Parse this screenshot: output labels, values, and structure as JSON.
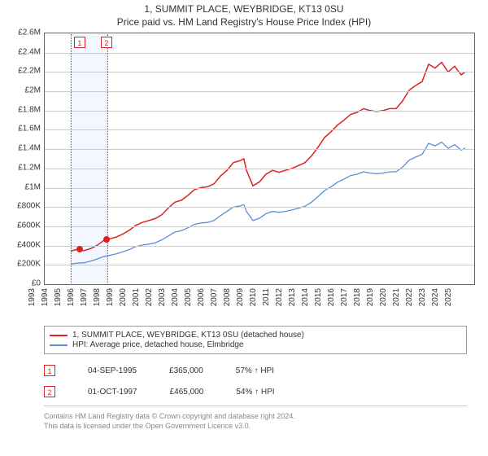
{
  "title_line1": "1, SUMMIT PLACE, WEYBRIDGE, KT13 0SU",
  "title_line2": "Price paid vs. HM Land Registry's House Price Index (HPI)",
  "chart": {
    "type": "line",
    "background_color": "#ffffff",
    "grid_color": "#cccccc",
    "border_color": "#666666",
    "x": {
      "min": 1993,
      "max": 2026,
      "ticks": [
        1993,
        1994,
        1995,
        1996,
        1997,
        1998,
        1999,
        2000,
        2001,
        2002,
        2003,
        2004,
        2005,
        2006,
        2007,
        2008,
        2009,
        2010,
        2011,
        2012,
        2013,
        2014,
        2015,
        2016,
        2017,
        2018,
        2019,
        2020,
        2021,
        2022,
        2023,
        2024,
        2025
      ]
    },
    "y": {
      "min": 0,
      "max": 2600000,
      "ticks": [
        0,
        200000,
        400000,
        600000,
        800000,
        1000000,
        1200000,
        1400000,
        1600000,
        1800000,
        2000000,
        2200000,
        2400000,
        2600000
      ],
      "labels": [
        "£0",
        "£200K",
        "£400K",
        "£600K",
        "£800K",
        "£1M",
        "£1.2M",
        "£1.4M",
        "£1.6M",
        "£1.8M",
        "£2M",
        "£2.2M",
        "£2.4M",
        "£2.6M"
      ]
    },
    "label_fontsize": 10,
    "series": [
      {
        "name": "paid",
        "label": "1, SUMMIT PLACE, WEYBRIDGE, KT13 0SU (detached house)",
        "color": "#e02020",
        "width": 1.5,
        "points": [
          [
            1995.0,
            345000
          ],
          [
            1995.5,
            360000
          ],
          [
            1996.0,
            348000
          ],
          [
            1996.5,
            368000
          ],
          [
            1997.0,
            400000
          ],
          [
            1997.5,
            450000
          ],
          [
            1998.0,
            470000
          ],
          [
            1998.5,
            490000
          ],
          [
            1999.0,
            520000
          ],
          [
            1999.5,
            560000
          ],
          [
            2000.0,
            610000
          ],
          [
            2000.5,
            640000
          ],
          [
            2001.0,
            660000
          ],
          [
            2001.5,
            680000
          ],
          [
            2002.0,
            720000
          ],
          [
            2002.5,
            790000
          ],
          [
            2003.0,
            850000
          ],
          [
            2003.5,
            870000
          ],
          [
            2004.0,
            920000
          ],
          [
            2004.5,
            980000
          ],
          [
            2005.0,
            1000000
          ],
          [
            2005.5,
            1010000
          ],
          [
            2006.0,
            1040000
          ],
          [
            2006.5,
            1120000
          ],
          [
            2007.0,
            1180000
          ],
          [
            2007.5,
            1260000
          ],
          [
            2008.0,
            1280000
          ],
          [
            2008.3,
            1300000
          ],
          [
            2008.5,
            1180000
          ],
          [
            2009.0,
            1020000
          ],
          [
            2009.5,
            1060000
          ],
          [
            2010.0,
            1140000
          ],
          [
            2010.5,
            1180000
          ],
          [
            2011.0,
            1160000
          ],
          [
            2011.5,
            1180000
          ],
          [
            2012.0,
            1200000
          ],
          [
            2012.5,
            1230000
          ],
          [
            2013.0,
            1260000
          ],
          [
            2013.5,
            1330000
          ],
          [
            2014.0,
            1420000
          ],
          [
            2014.5,
            1520000
          ],
          [
            2015.0,
            1580000
          ],
          [
            2015.5,
            1650000
          ],
          [
            2016.0,
            1700000
          ],
          [
            2016.5,
            1760000
          ],
          [
            2017.0,
            1780000
          ],
          [
            2017.5,
            1820000
          ],
          [
            2018.0,
            1800000
          ],
          [
            2018.5,
            1790000
          ],
          [
            2019.0,
            1800000
          ],
          [
            2019.5,
            1820000
          ],
          [
            2020.0,
            1820000
          ],
          [
            2020.5,
            1900000
          ],
          [
            2021.0,
            2010000
          ],
          [
            2021.5,
            2060000
          ],
          [
            2022.0,
            2100000
          ],
          [
            2022.5,
            2280000
          ],
          [
            2023.0,
            2240000
          ],
          [
            2023.5,
            2300000
          ],
          [
            2024.0,
            2200000
          ],
          [
            2024.5,
            2260000
          ],
          [
            2025.0,
            2170000
          ],
          [
            2025.3,
            2200000
          ]
        ]
      },
      {
        "name": "hpi",
        "label": "HPI: Average price, detached house, Elmbridge",
        "color": "#5a8fd6",
        "width": 1.3,
        "points": [
          [
            1995.0,
            210000
          ],
          [
            1995.5,
            218000
          ],
          [
            1996.0,
            222000
          ],
          [
            1996.5,
            238000
          ],
          [
            1997.0,
            260000
          ],
          [
            1997.5,
            285000
          ],
          [
            1998.0,
            300000
          ],
          [
            1998.5,
            315000
          ],
          [
            1999.0,
            335000
          ],
          [
            1999.5,
            360000
          ],
          [
            2000.0,
            390000
          ],
          [
            2000.5,
            405000
          ],
          [
            2001.0,
            415000
          ],
          [
            2001.5,
            430000
          ],
          [
            2002.0,
            460000
          ],
          [
            2002.5,
            500000
          ],
          [
            2003.0,
            540000
          ],
          [
            2003.5,
            555000
          ],
          [
            2004.0,
            585000
          ],
          [
            2004.5,
            620000
          ],
          [
            2005.0,
            635000
          ],
          [
            2005.5,
            640000
          ],
          [
            2006.0,
            660000
          ],
          [
            2006.5,
            710000
          ],
          [
            2007.0,
            755000
          ],
          [
            2007.5,
            800000
          ],
          [
            2008.0,
            810000
          ],
          [
            2008.3,
            825000
          ],
          [
            2008.5,
            755000
          ],
          [
            2009.0,
            660000
          ],
          [
            2009.5,
            685000
          ],
          [
            2010.0,
            730000
          ],
          [
            2010.5,
            755000
          ],
          [
            2011.0,
            745000
          ],
          [
            2011.5,
            755000
          ],
          [
            2012.0,
            770000
          ],
          [
            2012.5,
            788000
          ],
          [
            2013.0,
            808000
          ],
          [
            2013.5,
            850000
          ],
          [
            2014.0,
            908000
          ],
          [
            2014.5,
            970000
          ],
          [
            2015.0,
            1010000
          ],
          [
            2015.5,
            1058000
          ],
          [
            2016.0,
            1090000
          ],
          [
            2016.5,
            1126000
          ],
          [
            2017.0,
            1140000
          ],
          [
            2017.5,
            1165000
          ],
          [
            2018.0,
            1152000
          ],
          [
            2018.5,
            1145000
          ],
          [
            2019.0,
            1152000
          ],
          [
            2019.5,
            1165000
          ],
          [
            2020.0,
            1165000
          ],
          [
            2020.5,
            1215000
          ],
          [
            2021.0,
            1285000
          ],
          [
            2021.5,
            1318000
          ],
          [
            2022.0,
            1346000
          ],
          [
            2022.5,
            1460000
          ],
          [
            2023.0,
            1434000
          ],
          [
            2023.5,
            1473000
          ],
          [
            2024.0,
            1408000
          ],
          [
            2024.5,
            1447000
          ],
          [
            2025.0,
            1390000
          ],
          [
            2025.3,
            1410000
          ]
        ]
      }
    ],
    "price_band": {
      "start": 1995.0,
      "end": 1997.8,
      "fill": "rgba(100,150,255,0.08)",
      "line_color": "#d33"
    },
    "transactions": [
      {
        "marker": "1",
        "date": 1995.68,
        "price": 365000,
        "marker_color": "#d22",
        "dot_color": "#e02020"
      },
      {
        "marker": "2",
        "date": 1997.75,
        "price": 465000,
        "marker_color": "#d22",
        "dot_color": "#e02020"
      }
    ]
  },
  "legend": {
    "item1": "1, SUMMIT PLACE, WEYBRIDGE, KT13 0SU (detached house)",
    "item2": "HPI: Average price, detached house, Elmbridge"
  },
  "txn_table": {
    "rows": [
      {
        "marker": "1",
        "date": "04-SEP-1995",
        "price": "£365,000",
        "rel": "57% ↑ HPI"
      },
      {
        "marker": "2",
        "date": "01-OCT-1997",
        "price": "£465,000",
        "rel": "54% ↑ HPI"
      }
    ]
  },
  "footer_line1": "Contains HM Land Registry data © Crown copyright and database right 2024.",
  "footer_line2": "This data is licensed under the Open Government Licence v3.0."
}
